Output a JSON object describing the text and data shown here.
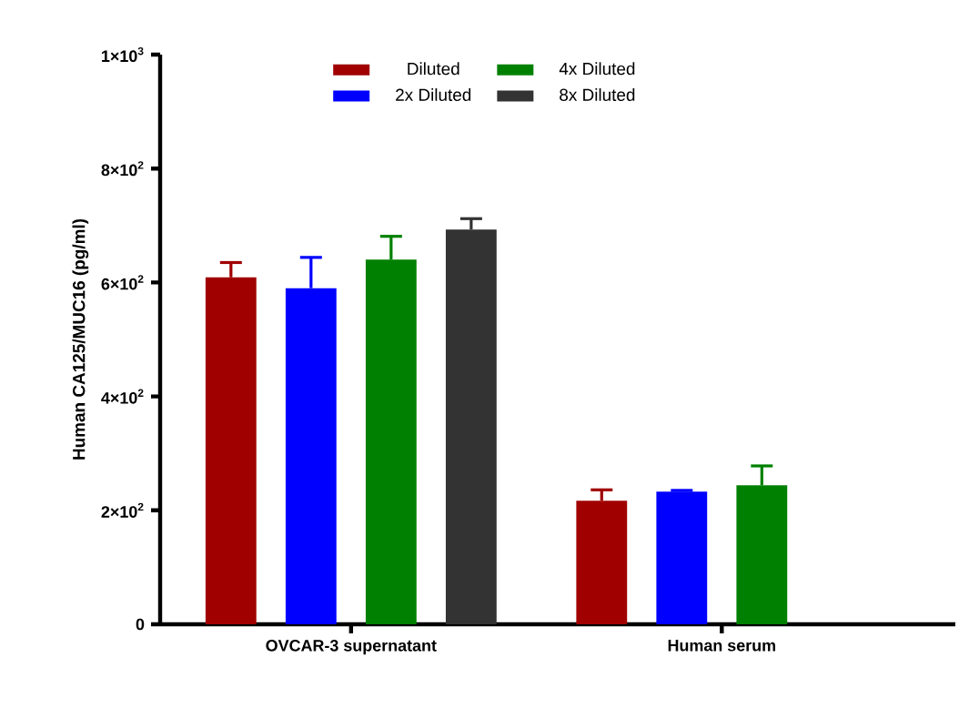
{
  "chart_data": {
    "type": "bar",
    "ylabel": "Human CA125/MUC16 (pg/ml)",
    "categories": [
      "OVCAR-3 supernatant",
      "Human serum"
    ],
    "series": [
      {
        "name": "Diluted",
        "color": "#a00000",
        "values": [
          609,
          217
        ],
        "errors": [
          26,
          19
        ]
      },
      {
        "name": "2x Diluted",
        "color": "#0000ff",
        "values": [
          590,
          233
        ],
        "errors": [
          54,
          2
        ]
      },
      {
        "name": "4x Diluted",
        "color": "#008000",
        "values": [
          640,
          244
        ],
        "errors": [
          41,
          34
        ]
      },
      {
        "name": "8x Diluted",
        "color": "#333333",
        "values": [
          693,
          null
        ],
        "errors": [
          19,
          null
        ]
      }
    ],
    "ylim": [
      0,
      1000
    ],
    "yticks": [
      {
        "value": 0,
        "label": "0"
      },
      {
        "value": 200,
        "label": "2×10$^{2}$"
      },
      {
        "value": 400,
        "label": "4×10$^{2}$"
      },
      {
        "value": 600,
        "label": "6×10$^{2}$"
      },
      {
        "value": 800,
        "label": "8×10$^{2}$"
      },
      {
        "value": 1000,
        "label": "1×10$^{3}$"
      }
    ],
    "legend": "top"
  }
}
